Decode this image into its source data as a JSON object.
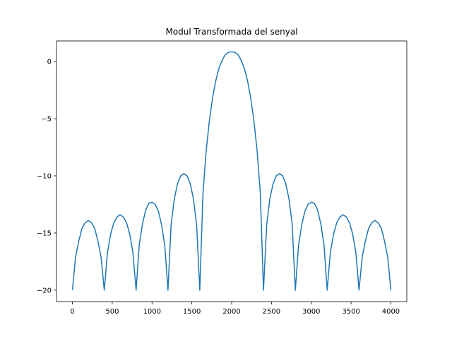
{
  "chart_data": {
    "type": "line",
    "title": "Modul Transformada del senyal",
    "xlabel": "",
    "ylabel": "",
    "xlim": [
      -200,
      4200
    ],
    "ylim": [
      -21.0,
      1.8
    ],
    "xticks": [
      0,
      500,
      1000,
      1500,
      2000,
      2500,
      3000,
      3500,
      4000
    ],
    "yticks": [
      0,
      -5,
      -10,
      -15,
      -20
    ],
    "grid": false,
    "series": [
      {
        "color": "#1f77b4",
        "x": [
          0,
          40,
          80,
          120,
          160,
          200,
          240,
          280,
          320,
          360,
          400,
          440,
          480,
          520,
          560,
          600,
          640,
          680,
          720,
          760,
          800,
          840,
          880,
          920,
          960,
          1000,
          1040,
          1080,
          1120,
          1160,
          1200,
          1240,
          1280,
          1320,
          1360,
          1400,
          1440,
          1480,
          1520,
          1560,
          1600,
          1640,
          1680,
          1720,
          1760,
          1800,
          1840,
          1880,
          1920,
          1960,
          2000,
          2040,
          2080,
          2120,
          2160,
          2200,
          2240,
          2280,
          2320,
          2360,
          2400,
          2440,
          2480,
          2520,
          2560,
          2600,
          2640,
          2680,
          2720,
          2760,
          2800,
          2840,
          2880,
          2920,
          2960,
          3000,
          3040,
          3080,
          3120,
          3160,
          3200,
          3240,
          3280,
          3320,
          3360,
          3400,
          3440,
          3480,
          3520,
          3560,
          3600,
          3640,
          3680,
          3720,
          3760,
          3800,
          3840,
          3880,
          3920,
          3960,
          4000
        ],
        "y": [
          -20.0,
          -17.1,
          -15.7,
          -14.6,
          -14.1,
          -13.9,
          -14.1,
          -14.6,
          -15.7,
          -17.1,
          -20.0,
          -16.7,
          -15.1,
          -14.1,
          -13.6,
          -13.4,
          -13.6,
          -14.1,
          -15.1,
          -16.7,
          -20.0,
          -16.0,
          -14.2,
          -13.0,
          -12.4,
          -12.3,
          -12.5,
          -13.1,
          -14.3,
          -16.1,
          -20.0,
          -14.2,
          -12.0,
          -10.7,
          -10.0,
          -9.8,
          -10.0,
          -10.7,
          -12.0,
          -14.3,
          -20.0,
          -11.5,
          -7.8,
          -5.2,
          -3.2,
          -1.7,
          -0.6,
          0.1,
          0.6,
          0.8,
          0.85,
          0.8,
          0.6,
          0.1,
          -0.6,
          -1.7,
          -3.2,
          -5.2,
          -7.8,
          -11.5,
          -20.0,
          -14.3,
          -12.0,
          -10.7,
          -10.0,
          -9.8,
          -10.0,
          -10.7,
          -12.0,
          -14.2,
          -20.0,
          -16.1,
          -14.3,
          -13.1,
          -12.5,
          -12.3,
          -12.4,
          -13.0,
          -14.2,
          -16.0,
          -20.0,
          -16.7,
          -15.1,
          -14.1,
          -13.6,
          -13.4,
          -13.6,
          -14.1,
          -15.1,
          -16.7,
          -20.0,
          -17.1,
          -15.7,
          -14.6,
          -14.1,
          -13.9,
          -14.1,
          -14.6,
          -15.7,
          -17.1,
          -20.0
        ]
      }
    ]
  }
}
